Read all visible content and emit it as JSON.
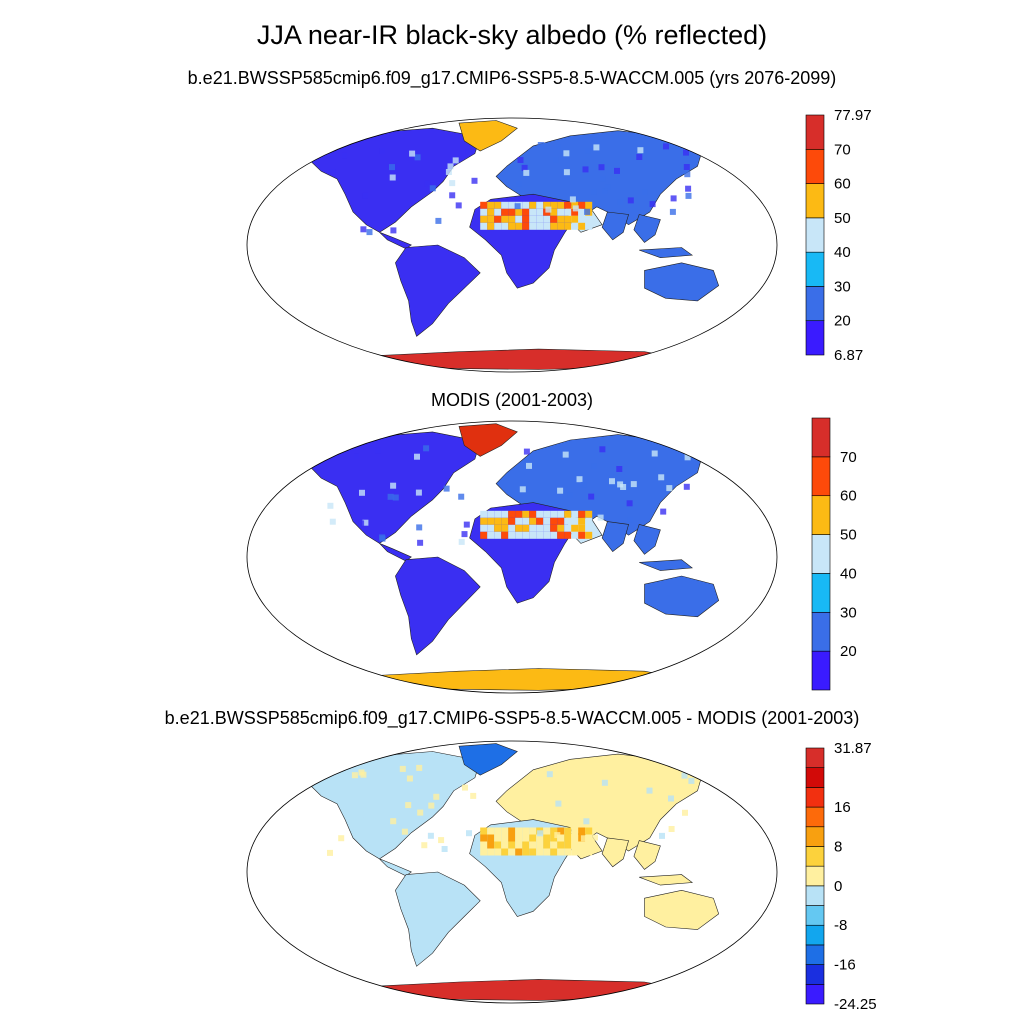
{
  "figure": {
    "title": "JJA near-IR black-sky albedo (% reflected)"
  },
  "panels": [
    {
      "title": "b.e21.BWSSP585cmip6.f09_g17.CMIP6-SSP5-8.5-WACCM.005 (yrs 2076-2099)",
      "colorbar": {
        "colors": [
          "#3a1bff",
          "#3a6ee8",
          "#18b9f5",
          "#c8e6f8",
          "#fcba14",
          "#fd4a0a",
          "#d72e2a"
        ],
        "labels": [
          "6.87",
          "20",
          "30",
          "40",
          "50",
          "60",
          "70",
          "77.97"
        ]
      },
      "palette": {
        "land": "#3a2ff2",
        "mid": "#3a6ee8",
        "desert_light": "#c8e6f8",
        "desert_warm": "#fcba14",
        "desert_hot": "#fd4a0a",
        "ice": "#d72e2a",
        "greenland": "#fcba14"
      }
    },
    {
      "title": "MODIS (2001-2003)",
      "colorbar": {
        "colors": [
          "#3a1bff",
          "#3a6ee8",
          "#18b9f5",
          "#c8e6f8",
          "#fcba14",
          "#fd4a0a",
          "#d72e2a"
        ],
        "labels": [
          "",
          "20",
          "30",
          "40",
          "50",
          "60",
          "70",
          ""
        ]
      },
      "palette": {
        "land": "#3a2ff2",
        "mid": "#3a6ee8",
        "desert_light": "#c8e6f8",
        "desert_warm": "#fcba14",
        "desert_hot": "#fd4a0a",
        "ice": "#fcba14",
        "greenland": "#e0300f"
      }
    },
    {
      "title": "b.e21.BWSSP585cmip6.f09_g17.CMIP6-SSP5-8.5-WACCM.005 - MODIS (2001-2003)",
      "colorbar": {
        "colors": [
          "#3a1bff",
          "#1a2fe0",
          "#1e6fe6",
          "#12a6ee",
          "#64c8f2",
          "#b8e2f6",
          "#fff0a0",
          "#fcd23c",
          "#f8a010",
          "#fd6a0a",
          "#f23010",
          "#d20a08",
          "#d72e2a"
        ],
        "labels": [
          "-24.25",
          "",
          "-16",
          "",
          "-8",
          "",
          "0",
          "",
          "8",
          "",
          "16",
          "",
          "",
          "31.87"
        ]
      },
      "palette": {
        "land": "#b8e2f6",
        "mid": "#fff0a0",
        "desert_light": "#fff0a0",
        "desert_warm": "#fcd23c",
        "desert_hot": "#f8a010",
        "ice": "#d72e2a",
        "greenland": "#1e6fe6"
      }
    }
  ]
}
